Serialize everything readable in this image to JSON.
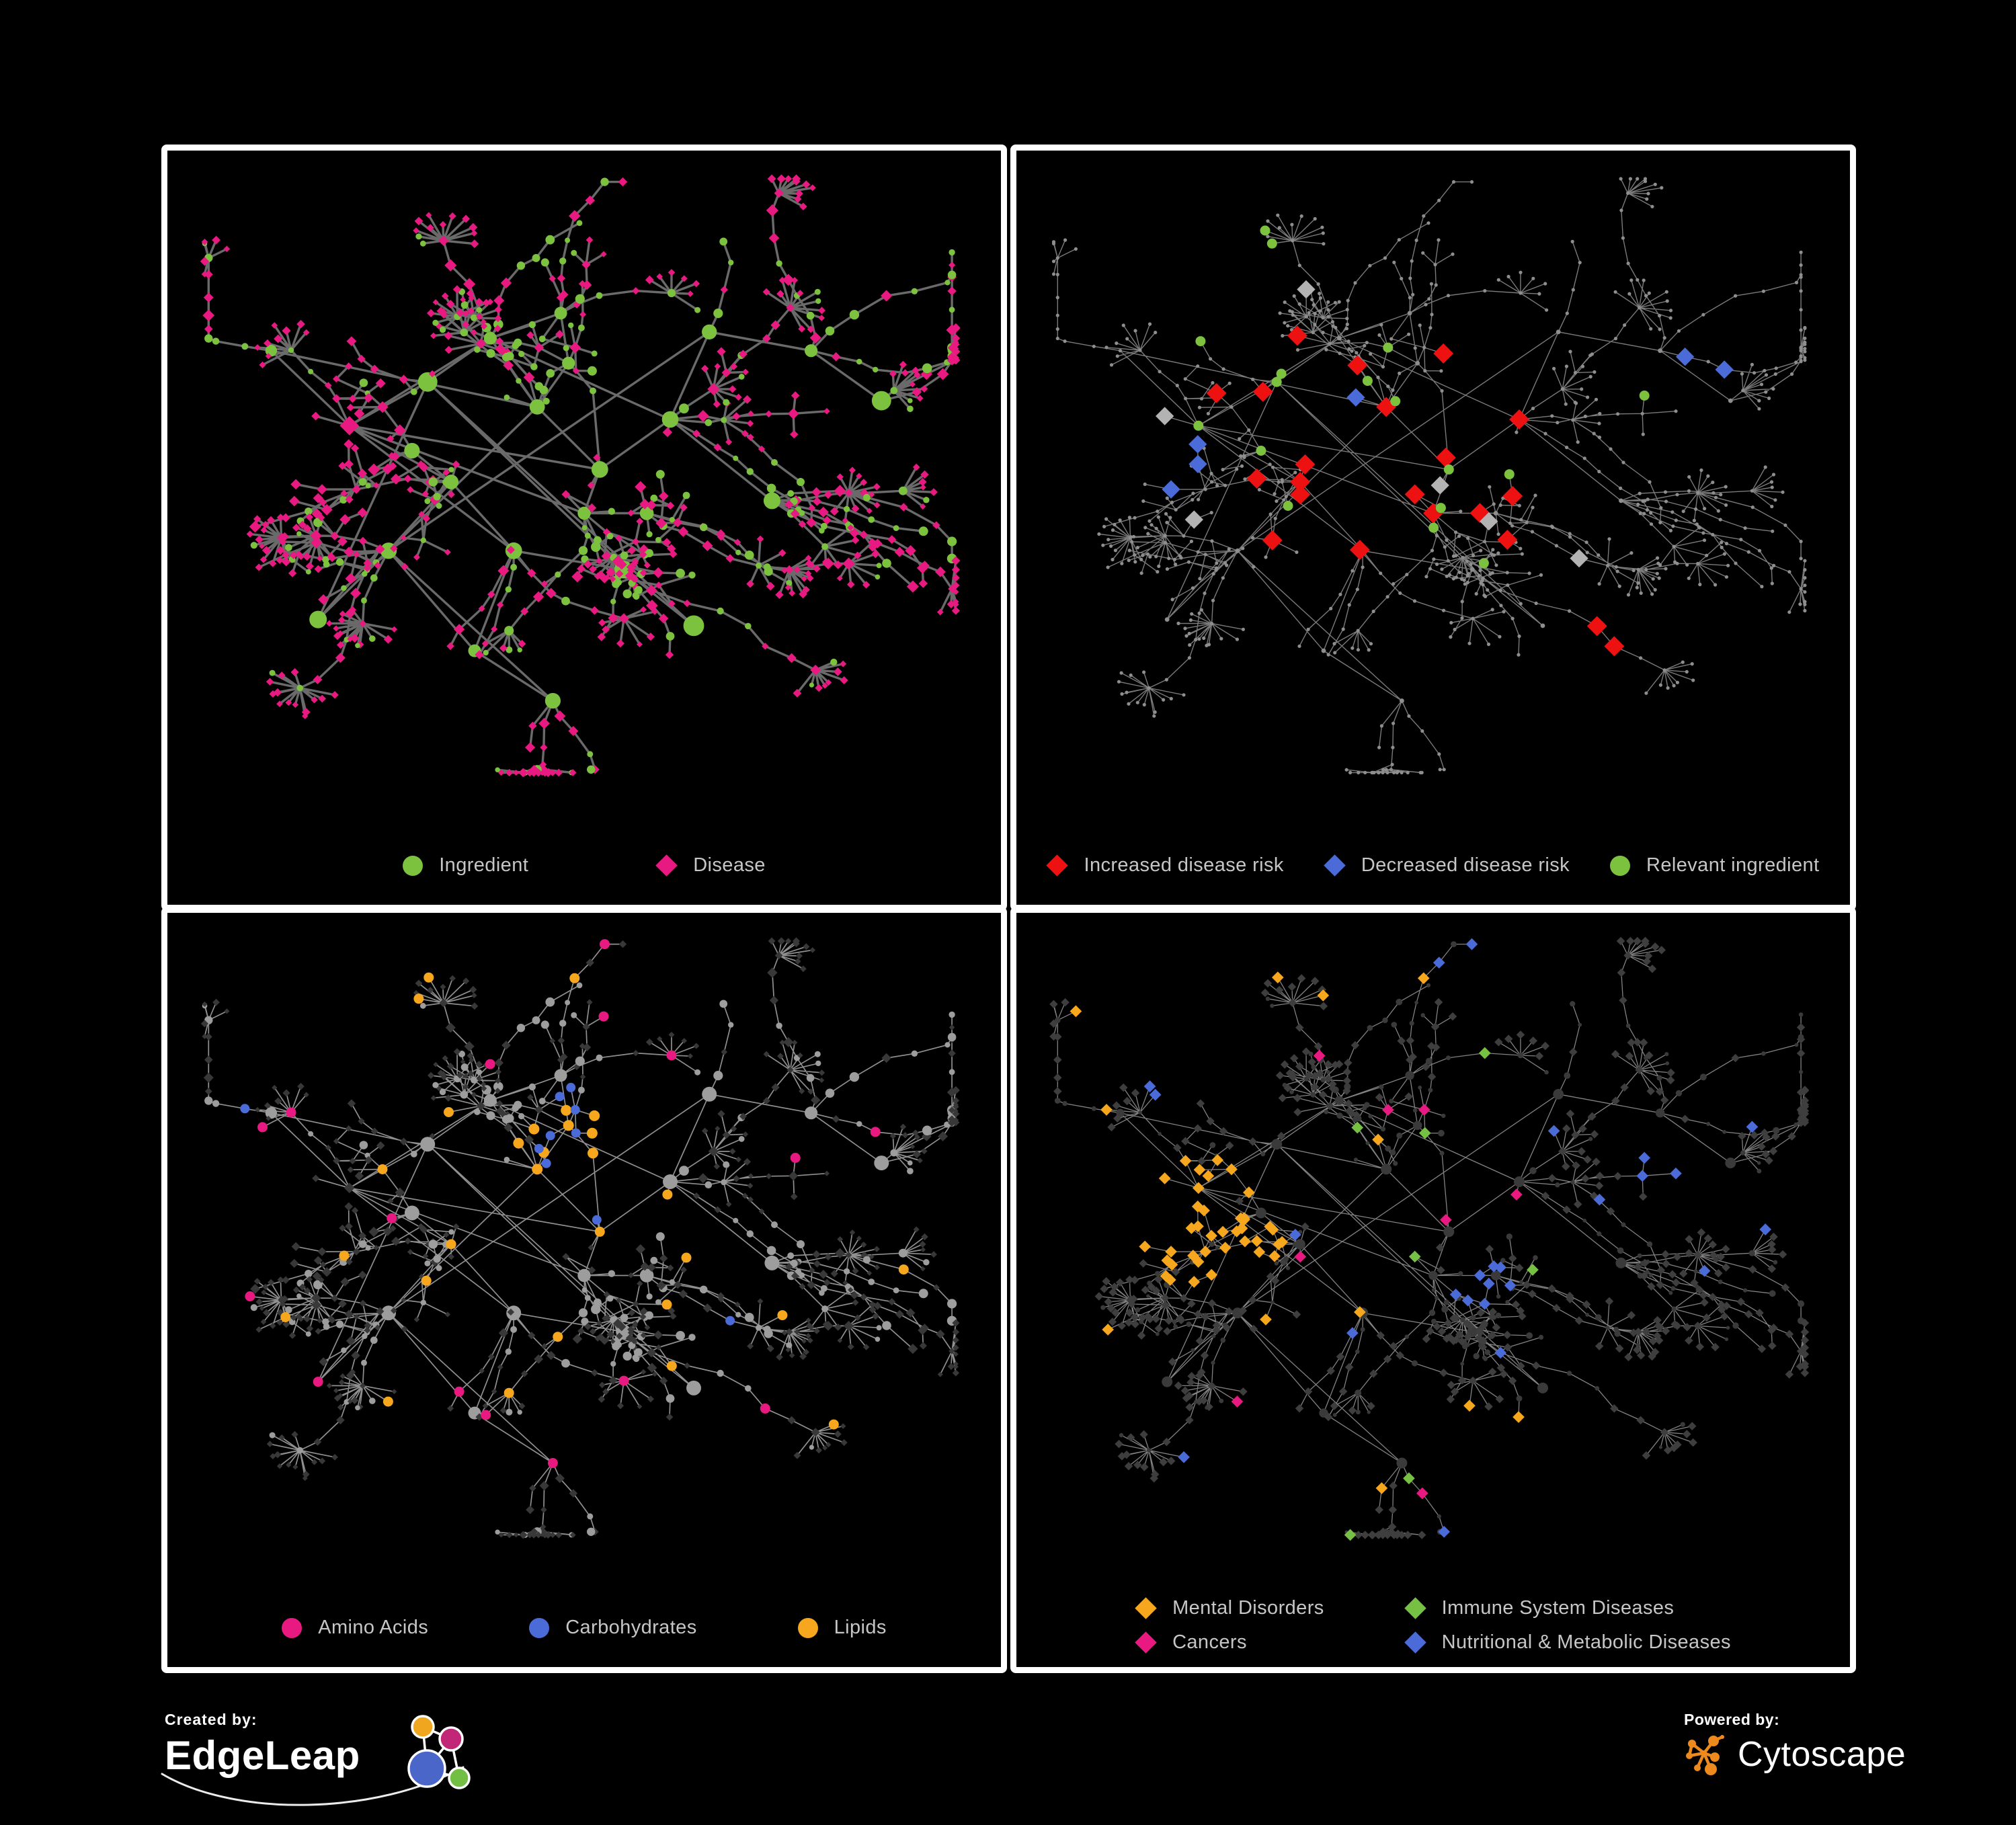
{
  "canvas": {
    "background": "#000000",
    "panel_border": "#ffffff",
    "legend_text_color": "#c6c6c6"
  },
  "panels": [
    {
      "id": "ingredient-disease",
      "style": {
        "edge_color": "#6a6a6a",
        "edge_width": 3.4
      },
      "legend": [
        {
          "label": "Ingredient",
          "shape": "circle",
          "color": "#7cc23e"
        },
        {
          "label": "Disease",
          "shape": "diamond",
          "color": "#e81980"
        }
      ]
    },
    {
      "id": "disease-risk",
      "style": {
        "edge_color": "#7a7a7a",
        "edge_width": 1.4,
        "base_node_color": "#8e8e8e",
        "neutral_diamond_color": "#b3b3b3"
      },
      "legend": [
        {
          "label": "Increased disease risk",
          "shape": "diamond",
          "color": "#ed1111"
        },
        {
          "label": "Decreased disease risk",
          "shape": "diamond",
          "color": "#4a6bd8"
        },
        {
          "label": "Relevant ingredient",
          "shape": "circle",
          "color": "#7cc23e"
        }
      ]
    },
    {
      "id": "nutrient-classes",
      "style": {
        "edge_color": "#909090",
        "edge_width": 1.7,
        "ingredient_node_color": "#9d9d9d",
        "disease_node_color": "#383838"
      },
      "legend": [
        {
          "label": "Amino Acids",
          "shape": "circle",
          "color": "#e81980"
        },
        {
          "label": "Carbohydrates",
          "shape": "circle",
          "color": "#4a6bd8"
        },
        {
          "label": "Lipids",
          "shape": "circle",
          "color": "#f6a71d"
        }
      ]
    },
    {
      "id": "disease-classes",
      "style": {
        "edge_color": "#828282",
        "edge_width": 1.3,
        "base_node_color": "#3e3e3e"
      },
      "legend": [
        {
          "label": "Mental Disorders",
          "shape": "diamond",
          "color": "#f6a71d"
        },
        {
          "label": "Immune System Diseases",
          "shape": "diamond",
          "color": "#76c043"
        },
        {
          "label": "Cancers",
          "shape": "diamond",
          "color": "#e81980"
        },
        {
          "label": "Nutritional & Metabolic Diseases",
          "shape": "diamond",
          "color": "#4a6bd8"
        }
      ]
    }
  ],
  "footer": {
    "created_by_label": "Created by:",
    "created_by_brand": "EdgeLeap",
    "powered_by_label": "Powered by:",
    "powered_by_brand": "Cytoscape"
  }
}
